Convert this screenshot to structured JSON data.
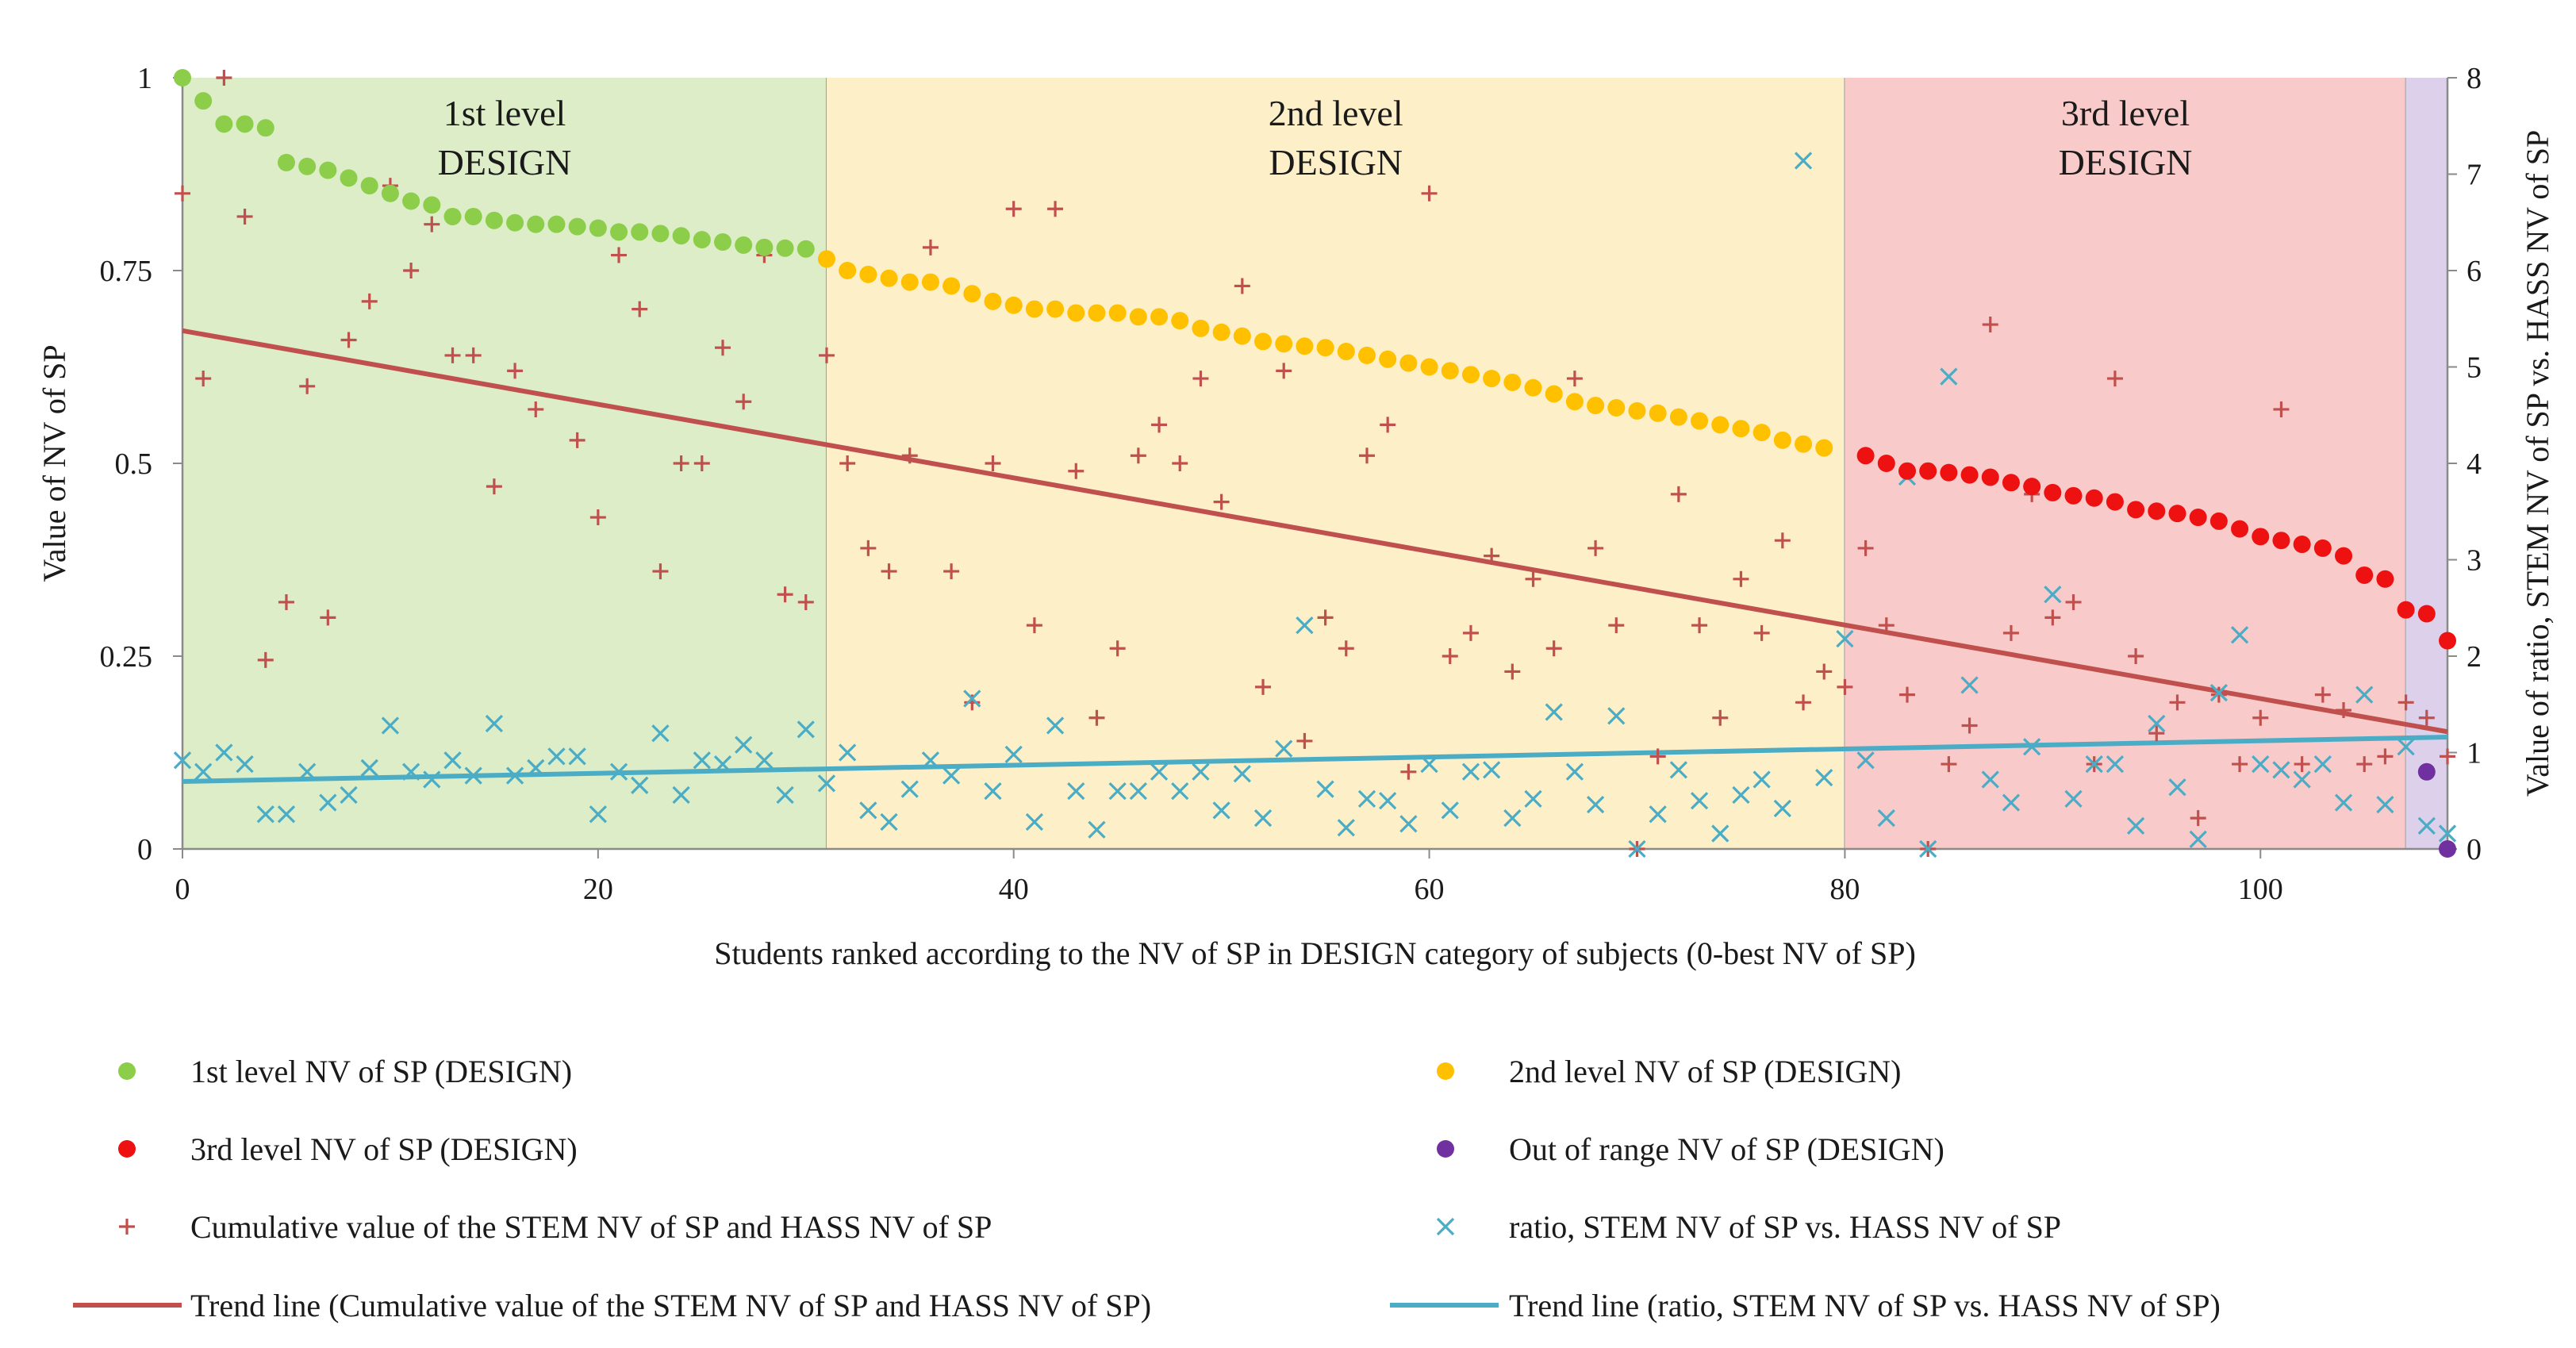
{
  "chart_data": {
    "type": "scatter",
    "title": "",
    "xlabel": "Students ranked according to the NV of SP in DESIGN category of subjects (0-best NV of SP)",
    "ylabel": "Value of NV of SP",
    "y2label": "Value of ratio, STEM NV of SP vs. HASS NV of SP",
    "xlim": [
      0,
      109
    ],
    "ylim": [
      0,
      1
    ],
    "y2lim": [
      0,
      8
    ],
    "xticks": [
      "0",
      "20",
      "40",
      "60",
      "80",
      "100"
    ],
    "yticks": [
      "0",
      "0.25",
      "0.5",
      "0.75",
      "1"
    ],
    "y2ticks": [
      "0",
      "1",
      "2",
      "3",
      "4",
      "5",
      "6",
      "7",
      "8"
    ],
    "grid": false,
    "legend_position": "bottom",
    "bands": [
      {
        "label1": "1st level",
        "label2": "DESIGN",
        "x_from": 0,
        "x_to": 31,
        "color": "#dcedc8"
      },
      {
        "label1": "2nd level",
        "label2": "DESIGN",
        "x_from": 31,
        "x_to": 80,
        "color": "#fdf0c8"
      },
      {
        "label1": "3rd level",
        "label2": "DESIGN",
        "x_from": 80,
        "x_to": 107,
        "color": "#f8caca"
      },
      {
        "label1": "",
        "label2": "",
        "x_from": 107,
        "x_to": 109,
        "color": "#ddd0ea"
      }
    ],
    "series": [
      {
        "name": "1st level NV of SP (DESIGN)",
        "marker": "dot",
        "color": "#8ccd4a",
        "axis": "left",
        "x_start": 0,
        "values": [
          1.0,
          0.97,
          0.94,
          0.94,
          0.935,
          0.89,
          0.885,
          0.88,
          0.87,
          0.86,
          0.85,
          0.84,
          0.835,
          0.82,
          0.82,
          0.815,
          0.812,
          0.81,
          0.81,
          0.807,
          0.805,
          0.8,
          0.8,
          0.798,
          0.795,
          0.79,
          0.787,
          0.783,
          0.78,
          0.779,
          0.778
        ]
      },
      {
        "name": "2nd level NV of SP (DESIGN)",
        "marker": "dot",
        "color": "#ffc000",
        "axis": "left",
        "x_start": 31,
        "values": [
          0.765,
          0.75,
          0.745,
          0.74,
          0.735,
          0.735,
          0.73,
          0.72,
          0.71,
          0.705,
          0.7,
          0.7,
          0.695,
          0.695,
          0.695,
          0.69,
          0.69,
          0.685,
          0.675,
          0.67,
          0.665,
          0.658,
          0.655,
          0.652,
          0.65,
          0.645,
          0.64,
          0.635,
          0.63,
          0.625,
          0.62,
          0.615,
          0.61,
          0.605,
          0.598,
          0.59,
          0.58,
          0.575,
          0.572,
          0.568,
          0.565,
          0.56,
          0.555,
          0.55,
          0.545,
          0.54,
          0.53,
          0.525,
          0.52
        ]
      },
      {
        "name": "3rd level NV of SP (DESIGN)",
        "marker": "dot",
        "color": "#ee1111",
        "axis": "left",
        "x_start": 81,
        "values": [
          0.51,
          0.5,
          0.49,
          0.49,
          0.488,
          0.485,
          0.482,
          0.475,
          0.47,
          0.462,
          0.458,
          0.455,
          0.45,
          0.44,
          0.438,
          0.435,
          0.43,
          0.425,
          0.415,
          0.405,
          0.4,
          0.395,
          0.39,
          0.38,
          0.355,
          0.35,
          0.31,
          0.305,
          0.27
        ]
      },
      {
        "name": "Out of range NV of SP (DESIGN)",
        "marker": "dot",
        "color": "#7030a0",
        "axis": "left",
        "x_start": 108,
        "values": [
          0.1,
          0.0
        ]
      },
      {
        "name": "Cumulative value of the STEM NV of SP and HASS NV of SP",
        "marker": "plus",
        "color": "#c0504d",
        "axis": "left",
        "x_start": 0,
        "values": [
          0.85,
          0.61,
          1.0,
          0.82,
          0.245,
          0.32,
          0.6,
          0.3,
          0.66,
          0.71,
          0.86,
          0.75,
          0.81,
          0.64,
          0.64,
          0.47,
          0.62,
          0.57,
          0.81,
          0.53,
          0.43,
          0.77,
          0.7,
          0.36,
          0.5,
          0.5,
          0.65,
          0.58,
          0.77,
          0.33,
          0.32,
          0.64,
          0.5,
          0.39,
          0.36,
          0.51,
          0.78,
          0.36,
          0.19,
          0.5,
          0.83,
          0.29,
          0.83,
          0.49,
          0.17,
          0.26,
          0.51,
          0.55,
          0.5,
          0.61,
          0.45,
          0.73,
          0.21,
          0.62,
          0.14,
          0.3,
          0.26,
          0.51,
          0.55,
          0.1,
          0.85,
          0.25,
          0.28,
          0.38,
          0.23,
          0.35,
          0.26,
          0.61,
          0.39,
          0.29,
          0.0,
          0.12,
          0.46,
          0.29,
          0.17,
          0.35,
          0.28,
          0.4,
          0.19,
          0.23,
          0.21,
          0.39,
          0.29,
          0.2,
          0.0,
          0.11,
          0.16,
          0.68,
          0.28,
          0.46,
          0.3,
          0.32,
          0.11,
          0.61,
          0.25,
          0.15,
          0.19,
          0.04,
          0.2,
          0.11,
          0.17,
          0.57,
          0.11,
          0.2,
          0.18,
          0.11,
          0.12,
          0.19,
          0.17,
          0.12
        ]
      },
      {
        "name": "ratio, STEM NV of SP vs. HASS NV of SP",
        "marker": "cross",
        "color": "#4bacc6",
        "axis": "right",
        "x_start": 0,
        "values": [
          0.92,
          0.8,
          1.0,
          0.88,
          0.36,
          0.36,
          0.8,
          0.48,
          0.56,
          0.84,
          1.28,
          0.8,
          0.72,
          0.92,
          0.76,
          1.3,
          0.76,
          0.84,
          0.96,
          0.96,
          0.36,
          0.8,
          0.66,
          1.2,
          0.56,
          0.92,
          0.88,
          1.08,
          0.92,
          0.56,
          1.24,
          0.68,
          1.0,
          0.4,
          0.28,
          0.62,
          0.92,
          0.76,
          1.56,
          0.6,
          0.98,
          0.28,
          1.28,
          0.6,
          0.2,
          0.6,
          0.6,
          0.8,
          0.6,
          0.8,
          0.4,
          0.78,
          0.32,
          1.04,
          2.32,
          0.62,
          0.22,
          0.52,
          0.5,
          0.26,
          0.88,
          0.4,
          0.8,
          0.82,
          0.32,
          0.52,
          1.42,
          0.8,
          0.46,
          1.38,
          0.0,
          0.36,
          0.82,
          0.5,
          0.16,
          0.56,
          0.72,
          0.42,
          7.14,
          0.74,
          2.18,
          0.92,
          0.32,
          3.86,
          0.0,
          4.9,
          1.7,
          0.72,
          0.48,
          1.06,
          2.64,
          0.52,
          0.88,
          0.88,
          0.24,
          1.3,
          0.64,
          0.1,
          1.62,
          2.22,
          0.88,
          0.82,
          0.72,
          0.88,
          0.48,
          1.6,
          0.46,
          1.06,
          0.24,
          0.16
        ]
      },
      {
        "name": "Trend line (Cumulative value of the STEM NV of SP and HASS NV of SP)",
        "marker": "line",
        "color": "#c0504d",
        "axis": "left",
        "x": [
          0,
          109
        ],
        "values": [
          0.672,
          0.152
        ]
      },
      {
        "name": "Trend line (ratio, STEM NV of SP vs. HASS NV of SP)",
        "marker": "line",
        "color": "#4bacc6",
        "axis": "right",
        "x": [
          0,
          109
        ],
        "values": [
          0.7,
          1.16
        ]
      }
    ]
  }
}
